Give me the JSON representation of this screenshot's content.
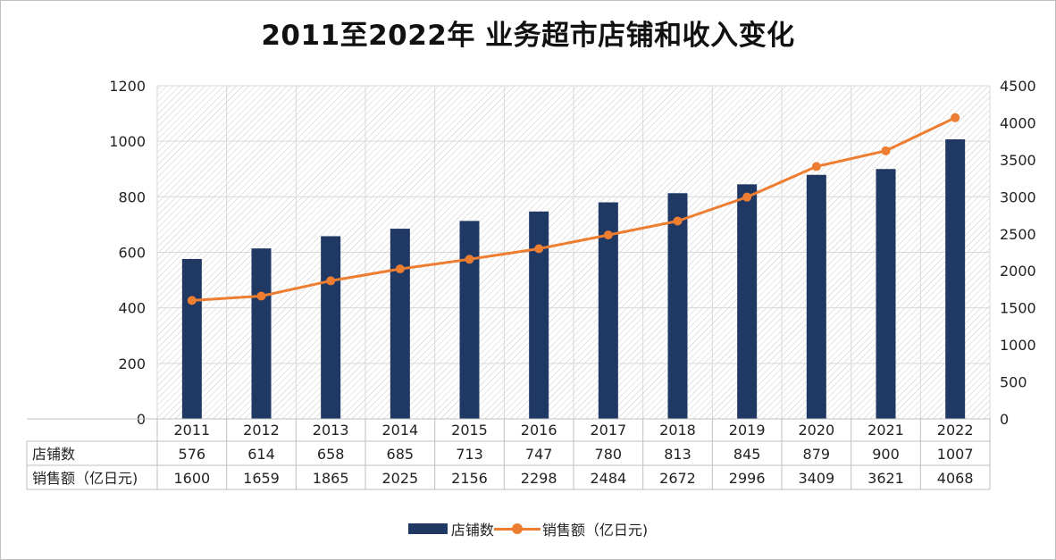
{
  "chart_data": {
    "type": "bar+line",
    "title": "2011至2022年 业务超市店铺和收入变化",
    "categories": [
      "2011",
      "2012",
      "2013",
      "2014",
      "2015",
      "2016",
      "2017",
      "2018",
      "2019",
      "2020",
      "2021",
      "2022"
    ],
    "series": [
      {
        "name": "店铺数",
        "type": "bar",
        "axis": "left",
        "color": "#1f3864",
        "values": [
          576,
          614,
          658,
          685,
          713,
          747,
          780,
          813,
          845,
          879,
          900,
          1007
        ]
      },
      {
        "name": "销售额（亿日元)",
        "type": "line",
        "axis": "right",
        "color": "#ed7d31",
        "values": [
          1600,
          1659,
          1865,
          2025,
          2156,
          2298,
          2484,
          2672,
          2996,
          3409,
          3621,
          4068
        ]
      }
    ],
    "y_left": {
      "min": 0,
      "max": 1200,
      "ticks": [
        0,
        200,
        400,
        600,
        800,
        1000,
        1200
      ]
    },
    "y_right": {
      "min": 0,
      "max": 4500,
      "ticks": [
        0,
        500,
        1000,
        1500,
        2000,
        2500,
        3000,
        3500,
        4000,
        4500
      ]
    },
    "grid": true,
    "legend": "bottom",
    "data_table": {
      "rows": [
        {
          "label": "店铺数",
          "values": [
            "576",
            "614",
            "658",
            "685",
            "713",
            "747",
            "780",
            "813",
            "845",
            "879",
            "900",
            "1007"
          ]
        },
        {
          "label": "销售额（亿日元)",
          "values": [
            "1600",
            "1659",
            "1865",
            "2025",
            "2156",
            "2298",
            "2484",
            "2672",
            "2996",
            "3409",
            "3621",
            "4068"
          ]
        }
      ]
    }
  },
  "legend": {
    "bar_label": "店铺数",
    "line_label": "销售额（亿日元)"
  },
  "colors": {
    "bar": "#1f3864",
    "line": "#ed7d31",
    "grid": "#d9d9d9",
    "axis": "#bfbfbf",
    "hatch": "#c8c8c8"
  }
}
